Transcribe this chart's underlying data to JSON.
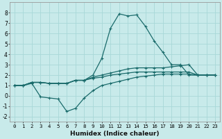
{
  "xlabel": "Humidex (Indice chaleur)",
  "bg_color": "#c8eaea",
  "grid_color": "#a8d8d8",
  "line_color": "#1a6b6b",
  "xlim": [
    -0.5,
    23.5
  ],
  "ylim": [
    -2.5,
    9.0
  ],
  "yticks": [
    -2,
    -1,
    0,
    1,
    2,
    3,
    4,
    5,
    6,
    7,
    8
  ],
  "xticks": [
    0,
    1,
    2,
    3,
    4,
    5,
    6,
    7,
    8,
    9,
    10,
    11,
    12,
    13,
    14,
    15,
    16,
    17,
    18,
    19,
    20,
    21,
    22,
    23
  ],
  "line_peak_x": [
    0,
    1,
    2,
    3,
    4,
    5,
    6,
    7,
    8,
    9,
    10,
    11,
    12,
    13,
    14,
    15,
    16,
    17,
    18,
    19,
    20,
    21,
    22,
    23
  ],
  "line_peak_y": [
    1.0,
    1.0,
    1.3,
    1.3,
    1.2,
    1.2,
    1.2,
    1.5,
    1.5,
    2.0,
    3.6,
    6.5,
    7.9,
    7.7,
    7.8,
    6.7,
    5.3,
    4.2,
    3.0,
    3.0,
    2.0,
    2.0,
    2.0,
    2.0
  ],
  "line_upper_x": [
    0,
    1,
    2,
    3,
    4,
    5,
    6,
    7,
    8,
    9,
    10,
    11,
    12,
    13,
    14,
    15,
    16,
    17,
    18,
    19,
    20,
    21,
    22,
    23
  ],
  "line_upper_y": [
    1.0,
    1.0,
    1.3,
    1.3,
    1.2,
    1.2,
    1.2,
    1.5,
    1.5,
    1.8,
    2.0,
    2.2,
    2.4,
    2.6,
    2.7,
    2.7,
    2.7,
    2.7,
    2.8,
    2.9,
    3.0,
    2.0,
    2.0,
    2.0
  ],
  "line_mid_x": [
    0,
    1,
    2,
    3,
    4,
    5,
    6,
    7,
    8,
    9,
    10,
    11,
    12,
    13,
    14,
    15,
    16,
    17,
    18,
    19,
    20,
    21,
    22,
    23
  ],
  "line_mid_y": [
    1.0,
    1.0,
    1.3,
    1.3,
    1.2,
    1.2,
    1.2,
    1.5,
    1.5,
    1.7,
    1.8,
    2.0,
    2.1,
    2.2,
    2.3,
    2.3,
    2.3,
    2.3,
    2.3,
    2.3,
    2.3,
    2.0,
    2.0,
    2.0
  ],
  "line_lower_x": [
    0,
    1,
    2,
    3,
    4,
    5,
    6,
    7,
    8,
    9,
    10,
    11,
    12,
    13,
    14,
    15,
    16,
    17,
    18,
    19,
    20,
    21,
    22,
    23
  ],
  "line_lower_y": [
    1.0,
    1.0,
    1.2,
    -0.1,
    -0.2,
    -0.3,
    -1.5,
    -1.2,
    -0.2,
    0.5,
    1.0,
    1.2,
    1.4,
    1.6,
    1.8,
    1.9,
    2.0,
    2.1,
    2.1,
    2.1,
    2.1,
    2.0,
    2.0,
    2.0
  ]
}
